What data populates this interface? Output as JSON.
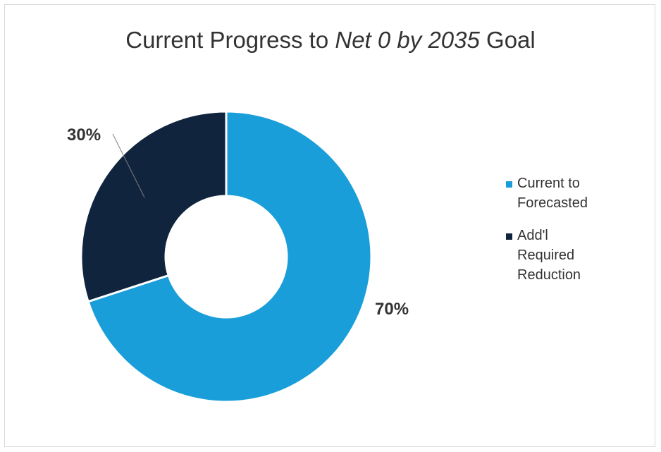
{
  "chart_data": {
    "type": "pie",
    "title_parts": {
      "prefix": "Current Progress to ",
      "emphasis": "Net 0 by 2035",
      "suffix": " Goal"
    },
    "slices": [
      {
        "label": "Current to Forecasted",
        "value": 70,
        "data_label": "70%",
        "color": "#1a9ed9"
      },
      {
        "label": "Add'l Required Reduction",
        "value": 30,
        "data_label": "30%",
        "color": "#10243e"
      }
    ],
    "legend_position": "right"
  }
}
